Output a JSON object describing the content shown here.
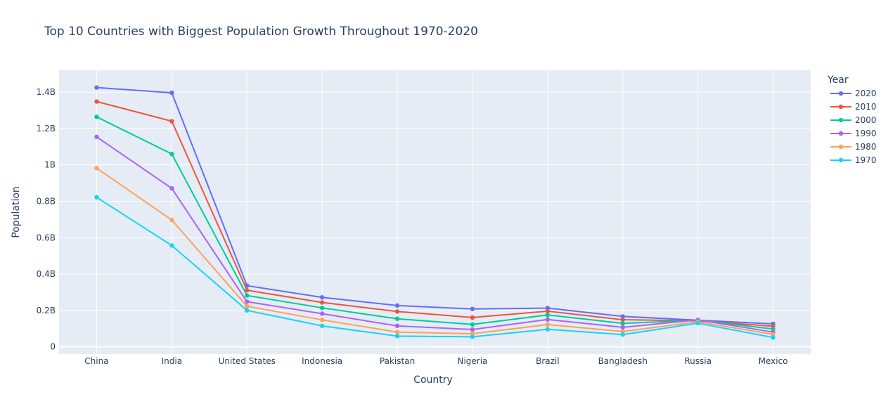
{
  "chart_data": {
    "type": "line",
    "title": "Top 10 Countries with Biggest Population Growth Throughout 1970-2020",
    "xlabel": "Country",
    "ylabel": "Population",
    "categories": [
      "China",
      "India",
      "United States",
      "Indonesia",
      "Pakistan",
      "Nigeria",
      "Brazil",
      "Bangladesh",
      "Russia",
      "Mexico"
    ],
    "ylim": [
      -0.04,
      1.52
    ],
    "y_unit_note": "billions",
    "y_ticks": [
      {
        "value": 0,
        "label": "0"
      },
      {
        "value": 0.2,
        "label": "0.2B"
      },
      {
        "value": 0.4,
        "label": "0.4B"
      },
      {
        "value": 0.6,
        "label": "0.6B"
      },
      {
        "value": 0.8,
        "label": "0.8B"
      },
      {
        "value": 1.0,
        "label": "1B"
      },
      {
        "value": 1.2,
        "label": "1.2B"
      },
      {
        "value": 1.4,
        "label": "1.4B"
      }
    ],
    "legend_title": "Year",
    "legend_position": "right",
    "grid": true,
    "series": [
      {
        "name": "2020",
        "color": "#636efa",
        "values": [
          1.425,
          1.396,
          0.336,
          0.272,
          0.227,
          0.208,
          0.213,
          0.167,
          0.146,
          0.126
        ]
      },
      {
        "name": "2010",
        "color": "#ef553b",
        "values": [
          1.348,
          1.24,
          0.311,
          0.244,
          0.194,
          0.161,
          0.196,
          0.149,
          0.143,
          0.113
        ]
      },
      {
        "name": "2000",
        "color": "#00cc96",
        "values": [
          1.264,
          1.06,
          0.282,
          0.214,
          0.154,
          0.123,
          0.175,
          0.129,
          0.146,
          0.098
        ]
      },
      {
        "name": "1990",
        "color": "#ab63fa",
        "values": [
          1.154,
          0.871,
          0.248,
          0.182,
          0.115,
          0.095,
          0.15,
          0.107,
          0.148,
          0.081
        ]
      },
      {
        "name": "1980",
        "color": "#ffa15a",
        "values": [
          0.982,
          0.697,
          0.223,
          0.148,
          0.081,
          0.072,
          0.122,
          0.084,
          0.138,
          0.068
        ]
      },
      {
        "name": "1970",
        "color": "#19d3f3",
        "values": [
          0.822,
          0.557,
          0.2,
          0.115,
          0.059,
          0.055,
          0.096,
          0.067,
          0.13,
          0.051
        ]
      }
    ]
  }
}
